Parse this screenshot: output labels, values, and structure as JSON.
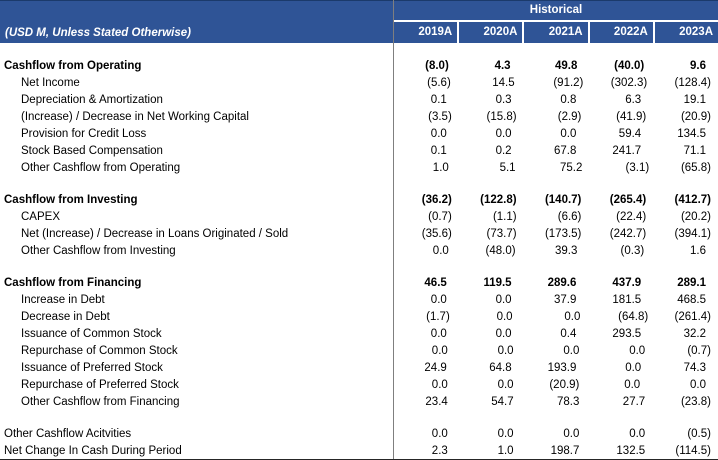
{
  "theme": {
    "header_bg": "#2F5496",
    "header_text": "#FFFFFF",
    "divider": "#7F7F7F",
    "text": "#000000"
  },
  "header": {
    "unit_note": "(USD M, Unless Stated Otherwise)",
    "group_label": "Historical",
    "columns": [
      "2019A",
      "2020A",
      "2021A",
      "2022A",
      "2023A"
    ]
  },
  "sections": [
    {
      "name": "operating",
      "rows": [
        {
          "label": "Cashflow from Operating",
          "style": "section",
          "values": [
            "(8.0)",
            "4.3",
            "49.8",
            "(40.0)",
            "9.6"
          ]
        },
        {
          "label": "Net Income",
          "style": "item",
          "values": [
            "(5.6)",
            "14.5",
            "(91.2)",
            "(302.3)",
            "(128.4)"
          ]
        },
        {
          "label": "Depreciation & Amortization",
          "style": "item",
          "values": [
            "0.1",
            "0.3",
            "0.8",
            "6.3",
            "19.1"
          ]
        },
        {
          "label": "(Increase) / Decrease in Net Working Capital",
          "style": "item",
          "values": [
            "(3.5)",
            "(15.8)",
            "(2.9)",
            "(41.9)",
            "(20.9)"
          ]
        },
        {
          "label": "Provision for Credit Loss",
          "style": "item",
          "values": [
            "0.0",
            "0.0",
            "0.0",
            "59.4",
            "134.5"
          ]
        },
        {
          "label": "Stock Based Compensation",
          "style": "item",
          "values": [
            "0.1",
            "0.2",
            "67.8",
            "241.7",
            "71.1"
          ]
        },
        {
          "label": "Other Cashflow from Operating",
          "style": "item",
          "values": [
            "1.0",
            "5.1",
            "75.2",
            "(3.1)",
            "(65.8)"
          ]
        }
      ]
    },
    {
      "name": "investing",
      "rows": [
        {
          "label": "Cashflow from Investing",
          "style": "section",
          "values": [
            "(36.2)",
            "(122.8)",
            "(140.7)",
            "(265.4)",
            "(412.7)"
          ]
        },
        {
          "label": "CAPEX",
          "style": "item",
          "values": [
            "(0.7)",
            "(1.1)",
            "(6.6)",
            "(22.4)",
            "(20.2)"
          ]
        },
        {
          "label": "Net (Increase) / Decrease in Loans Originated / Sold",
          "style": "item",
          "values": [
            "(35.6)",
            "(73.7)",
            "(173.5)",
            "(242.7)",
            "(394.1)"
          ]
        },
        {
          "label": "Other Cashflow from Investing",
          "style": "item",
          "values": [
            "0.0",
            "(48.0)",
            "39.3",
            "(0.3)",
            "1.6"
          ]
        }
      ]
    },
    {
      "name": "financing",
      "rows": [
        {
          "label": "Cashflow from Financing",
          "style": "section",
          "values": [
            "46.5",
            "119.5",
            "289.6",
            "437.9",
            "289.1"
          ]
        },
        {
          "label": "Increase in Debt",
          "style": "item",
          "values": [
            "0.0",
            "0.0",
            "37.9",
            "181.5",
            "468.5"
          ]
        },
        {
          "label": "Decrease in Debt",
          "style": "item",
          "values": [
            "(1.7)",
            "0.0",
            "0.0",
            "(64.8)",
            "(261.4)"
          ]
        },
        {
          "label": "Issuance of Common Stock",
          "style": "item",
          "values": [
            "0.0",
            "0.0",
            "0.4",
            "293.5",
            "32.2"
          ]
        },
        {
          "label": "Repurchase of Common Stock",
          "style": "item",
          "values": [
            "0.0",
            "0.0",
            "0.0",
            "0.0",
            "(0.7)"
          ]
        },
        {
          "label": "Issuance of Preferred Stock",
          "style": "item",
          "values": [
            "24.9",
            "64.8",
            "193.9",
            "0.0",
            "74.3"
          ]
        },
        {
          "label": "Repurchase of Preferred Stock",
          "style": "item",
          "values": [
            "0.0",
            "0.0",
            "(20.9)",
            "0.0",
            "0.0"
          ]
        },
        {
          "label": "Other Cashflow from Financing",
          "style": "item",
          "values": [
            "23.4",
            "54.7",
            "78.3",
            "27.7",
            "(23.8)"
          ]
        }
      ]
    },
    {
      "name": "summary",
      "rows": [
        {
          "label": "Other Cashflow Acitvities",
          "style": "plain",
          "values": [
            "0.0",
            "0.0",
            "0.0",
            "0.0",
            "(0.5)"
          ]
        },
        {
          "label": "Net Change In Cash During Period",
          "style": "plain",
          "values": [
            "2.3",
            "1.0",
            "198.7",
            "132.5",
            "(114.5)"
          ]
        }
      ]
    }
  ]
}
